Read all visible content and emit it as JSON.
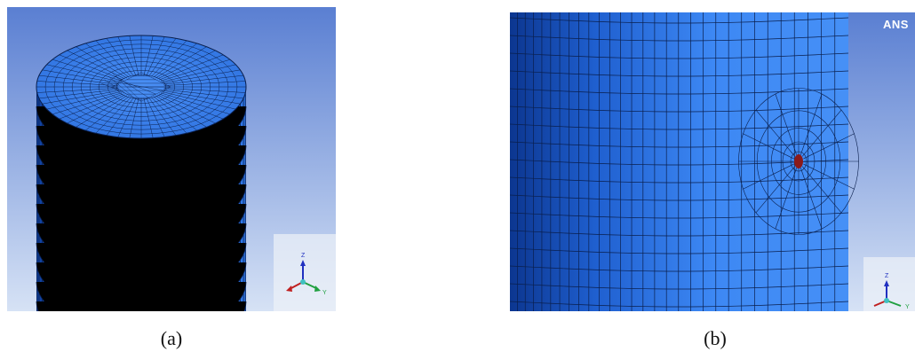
{
  "figure": {
    "panels": [
      {
        "caption": "(a)",
        "view": "cylinder-top-mesh"
      },
      {
        "caption": "(b)",
        "view": "cylinder-side-refined-mesh"
      }
    ],
    "logo_text": "ANS",
    "triad_labels": {
      "z": "Z",
      "y": "Y"
    },
    "colors": {
      "mesh_fill": "#3f86f2",
      "mesh_dark": "#0d3f9c",
      "mesh_lines": "#0a1f4d",
      "bg_top": "#5478cf",
      "bg_bottom": "#d9e4f6",
      "defect": "#8b1a1a"
    }
  }
}
